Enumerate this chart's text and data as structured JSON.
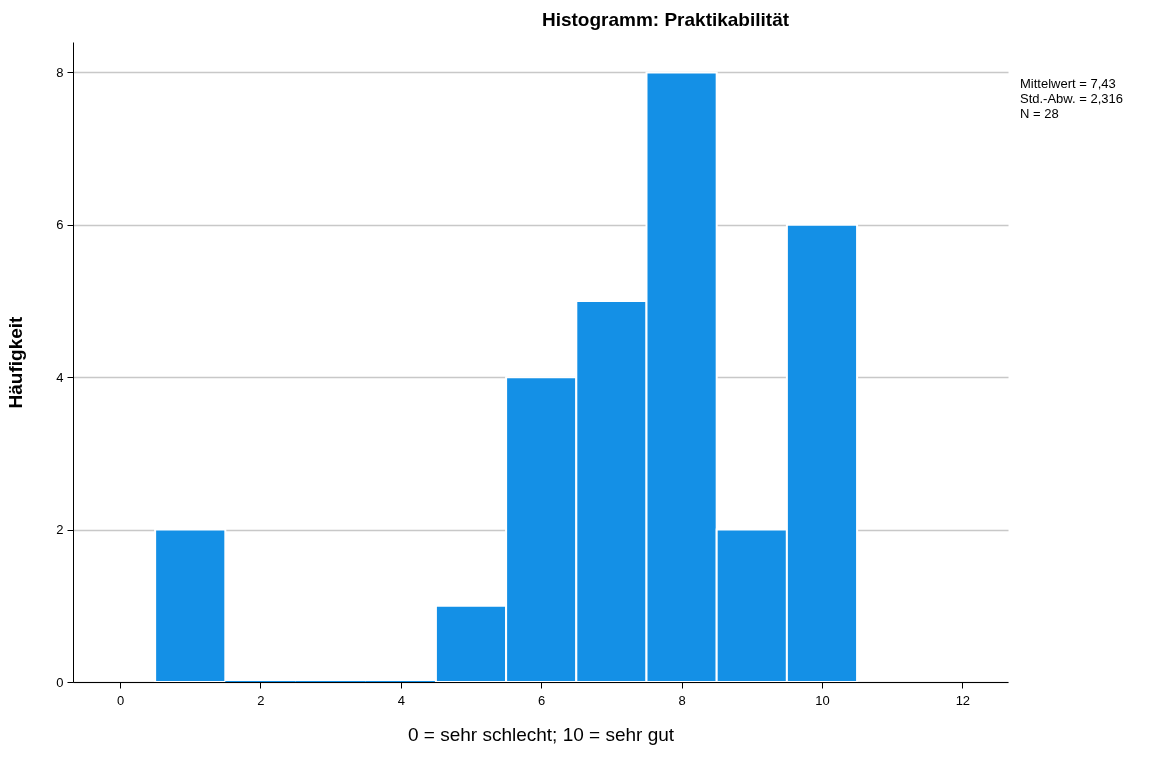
{
  "chart_data": {
    "type": "histogram",
    "title": "Histogramm: Praktikabilität",
    "xlabel": "0 = sehr schlecht; 10 = sehr gut",
    "ylabel": "Häufigkeit",
    "bins": [
      0.5,
      1.5,
      2.5,
      3.5,
      4.5,
      5.5,
      6.5,
      7.5,
      8.5,
      9.5,
      10.5
    ],
    "values": [
      2,
      0,
      0,
      0,
      1,
      4,
      5,
      8,
      2,
      6
    ],
    "color": "#1490e6",
    "xlim": [
      -0.67,
      12.65
    ],
    "xticks": [
      0,
      2,
      4,
      6,
      8,
      10,
      12
    ],
    "ylim": [
      0,
      8.4
    ],
    "yticks": [
      0,
      2,
      4,
      6,
      8
    ],
    "grid": "y",
    "annotations": [
      "Mittelwert = 7,43",
      "Std.-Abw. = 2,316",
      "N = 28"
    ]
  }
}
